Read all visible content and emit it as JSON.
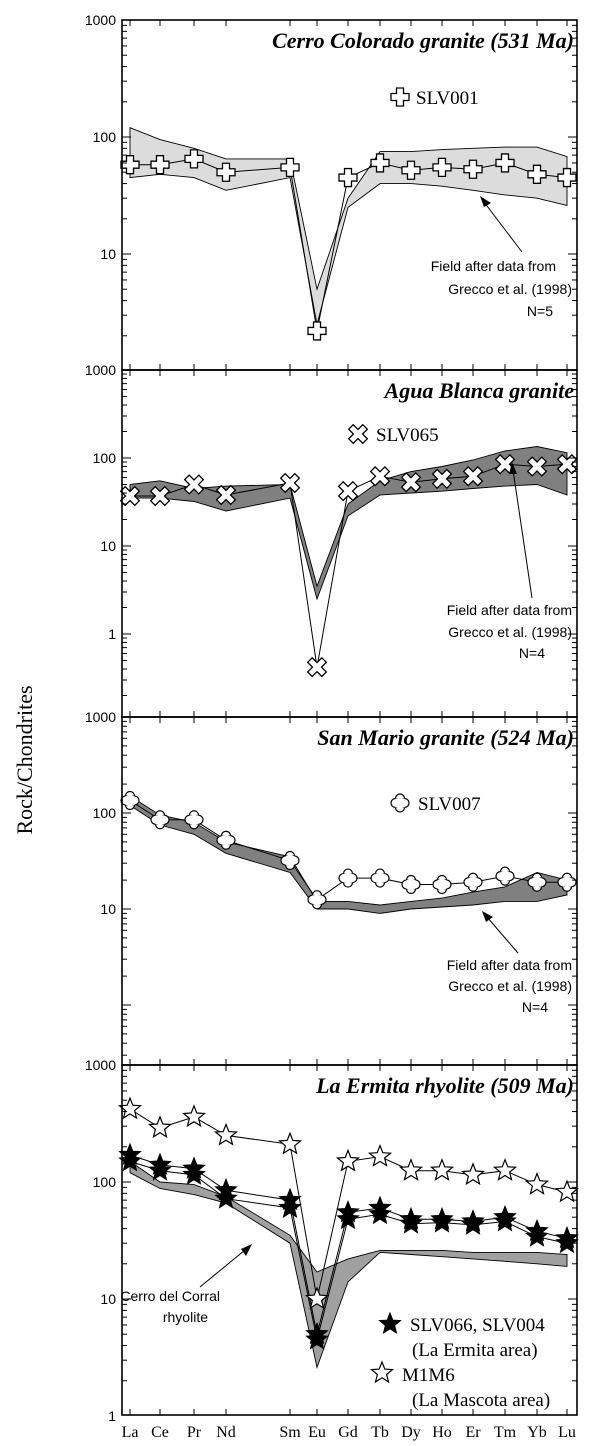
{
  "y_axis_label": "Rock/Chondrites",
  "elements": [
    "La",
    "Ce",
    "Pr",
    "Nd",
    "Sm",
    "Eu",
    "Gd",
    "Tb",
    "Dy",
    "Ho",
    "Er",
    "Tm",
    "Yb",
    "Lu"
  ],
  "chart_data": [
    {
      "type": "line",
      "title": "Cerro Colorado granite (531 Ma)",
      "ylim": [
        1,
        1000
      ],
      "yscale": "log",
      "y_tick_labels": [
        "1000",
        "100",
        "10"
      ],
      "categories": [
        "La",
        "Ce",
        "Pr",
        "Nd",
        "Sm",
        "Eu",
        "Gd",
        "Tb",
        "Dy",
        "Ho",
        "Er",
        "Tm",
        "Yb",
        "Lu"
      ],
      "series": [
        {
          "name": "SLV001",
          "marker": "open-cross",
          "values": [
            58,
            58,
            65,
            50,
            55,
            2.2,
            45,
            60,
            52,
            55,
            53,
            60,
            48,
            45
          ]
        }
      ],
      "field": {
        "upper": [
          120,
          95,
          80,
          65,
          65,
          5,
          30,
          75,
          75,
          78,
          80,
          82,
          82,
          68
        ],
        "lower": [
          45,
          48,
          45,
          35,
          45,
          2.5,
          25,
          40,
          40,
          38,
          35,
          32,
          30,
          26
        ]
      },
      "field_color": "#dcdcdc",
      "annotation": [
        "Field after data from",
        "Grecco et al. (1998)",
        "N=5"
      ]
    },
    {
      "type": "line",
      "title": "Agua Blanca granite",
      "ylim": [
        0.1,
        1000
      ],
      "yscale": "log",
      "y_tick_labels": [
        "1000",
        "100",
        "10",
        "1"
      ],
      "categories": [
        "La",
        "Ce",
        "Pr",
        "Nd",
        "Sm",
        "Eu",
        "Gd",
        "Tb",
        "Dy",
        "Ho",
        "Er",
        "Tm",
        "Yb",
        "Lu"
      ],
      "series": [
        {
          "name": "SLV065",
          "marker": "open-x",
          "values": [
            37,
            37,
            50,
            38,
            52,
            0.42,
            42,
            62,
            53,
            58,
            62,
            85,
            80,
            85
          ]
        }
      ],
      "field": {
        "upper": [
          50,
          55,
          45,
          48,
          50,
          3.5,
          30,
          55,
          70,
          80,
          95,
          120,
          135,
          115
        ],
        "lower": [
          35,
          35,
          32,
          25,
          35,
          2.5,
          22,
          38,
          40,
          42,
          45,
          48,
          50,
          38
        ]
      },
      "field_color": "#808080",
      "annotation": [
        "Field after data from",
        "Grecco et al. (1998)",
        "N=4"
      ]
    },
    {
      "type": "line",
      "title": "San Mario granite (524 Ma)",
      "ylim": [
        1,
        1000
      ],
      "yscale": "log",
      "y_tick_labels": [
        "1000",
        "100",
        "10"
      ],
      "categories": [
        "La",
        "Ce",
        "Pr",
        "Nd",
        "Sm",
        "Eu",
        "Gd",
        "Tb",
        "Dy",
        "Ho",
        "Er",
        "Tm",
        "Yb",
        "Lu"
      ],
      "series": [
        {
          "name": "SLV007",
          "marker": "open-clover",
          "values": [
            135,
            85,
            85,
            52,
            32,
            12.5,
            21,
            21,
            18,
            18,
            19,
            22,
            19,
            19
          ]
        }
      ],
      "field": {
        "upper": [
          150,
          95,
          80,
          50,
          35,
          12,
          12,
          11,
          12,
          13,
          15,
          17,
          24,
          20
        ],
        "lower": [
          120,
          75,
          60,
          38,
          24,
          10,
          10,
          9,
          10,
          10.5,
          11,
          12,
          12,
          14
        ]
      },
      "field_color": "#808080",
      "annotation": [
        "Field after data from",
        "Grecco et al. (1998)",
        "N=4"
      ]
    },
    {
      "type": "line",
      "title": "La Ermita rhyolite (509 Ma)",
      "ylim": [
        1,
        1000
      ],
      "yscale": "log",
      "y_tick_labels": [
        "1000",
        "100",
        "10",
        "1"
      ],
      "categories": [
        "La",
        "Ce",
        "Pr",
        "Nd",
        "Sm",
        "Eu",
        "Gd",
        "Tb",
        "Dy",
        "Ho",
        "Er",
        "Tm",
        "Yb",
        "Lu"
      ],
      "series": [
        {
          "name": "SLV066",
          "marker": "filled-star",
          "values": [
            170,
            140,
            130,
            85,
            70,
            5,
            55,
            60,
            48,
            48,
            46,
            50,
            38,
            33
          ]
        },
        {
          "name": "SLV004",
          "marker": "filled-star",
          "values": [
            150,
            125,
            115,
            72,
            60,
            4.5,
            48,
            53,
            44,
            45,
            43,
            46,
            34,
            30
          ]
        },
        {
          "name": "M1M6",
          "marker": "open-star",
          "values": [
            420,
            290,
            360,
            250,
            210,
            10,
            150,
            165,
            125,
            125,
            115,
            125,
            95,
            82
          ]
        }
      ],
      "field": {
        "upper": [
          150,
          100,
          95,
          75,
          35,
          17,
          22,
          26,
          26,
          26,
          25,
          25,
          25,
          24
        ],
        "lower": [
          120,
          88,
          78,
          66,
          30,
          2.6,
          14,
          25,
          24,
          23,
          22,
          21,
          20,
          19
        ]
      },
      "field_color": "#a0a0a0",
      "legend": [
        {
          "marker": "filled-star",
          "lines": [
            "SLV066, SLV004",
            "(La Ermita area)"
          ]
        },
        {
          "marker": "open-star",
          "lines": [
            "M1M6",
            "(La Mascota area)"
          ]
        }
      ],
      "annotation": [
        "Cerro del Corral",
        "rhyolite"
      ]
    }
  ]
}
